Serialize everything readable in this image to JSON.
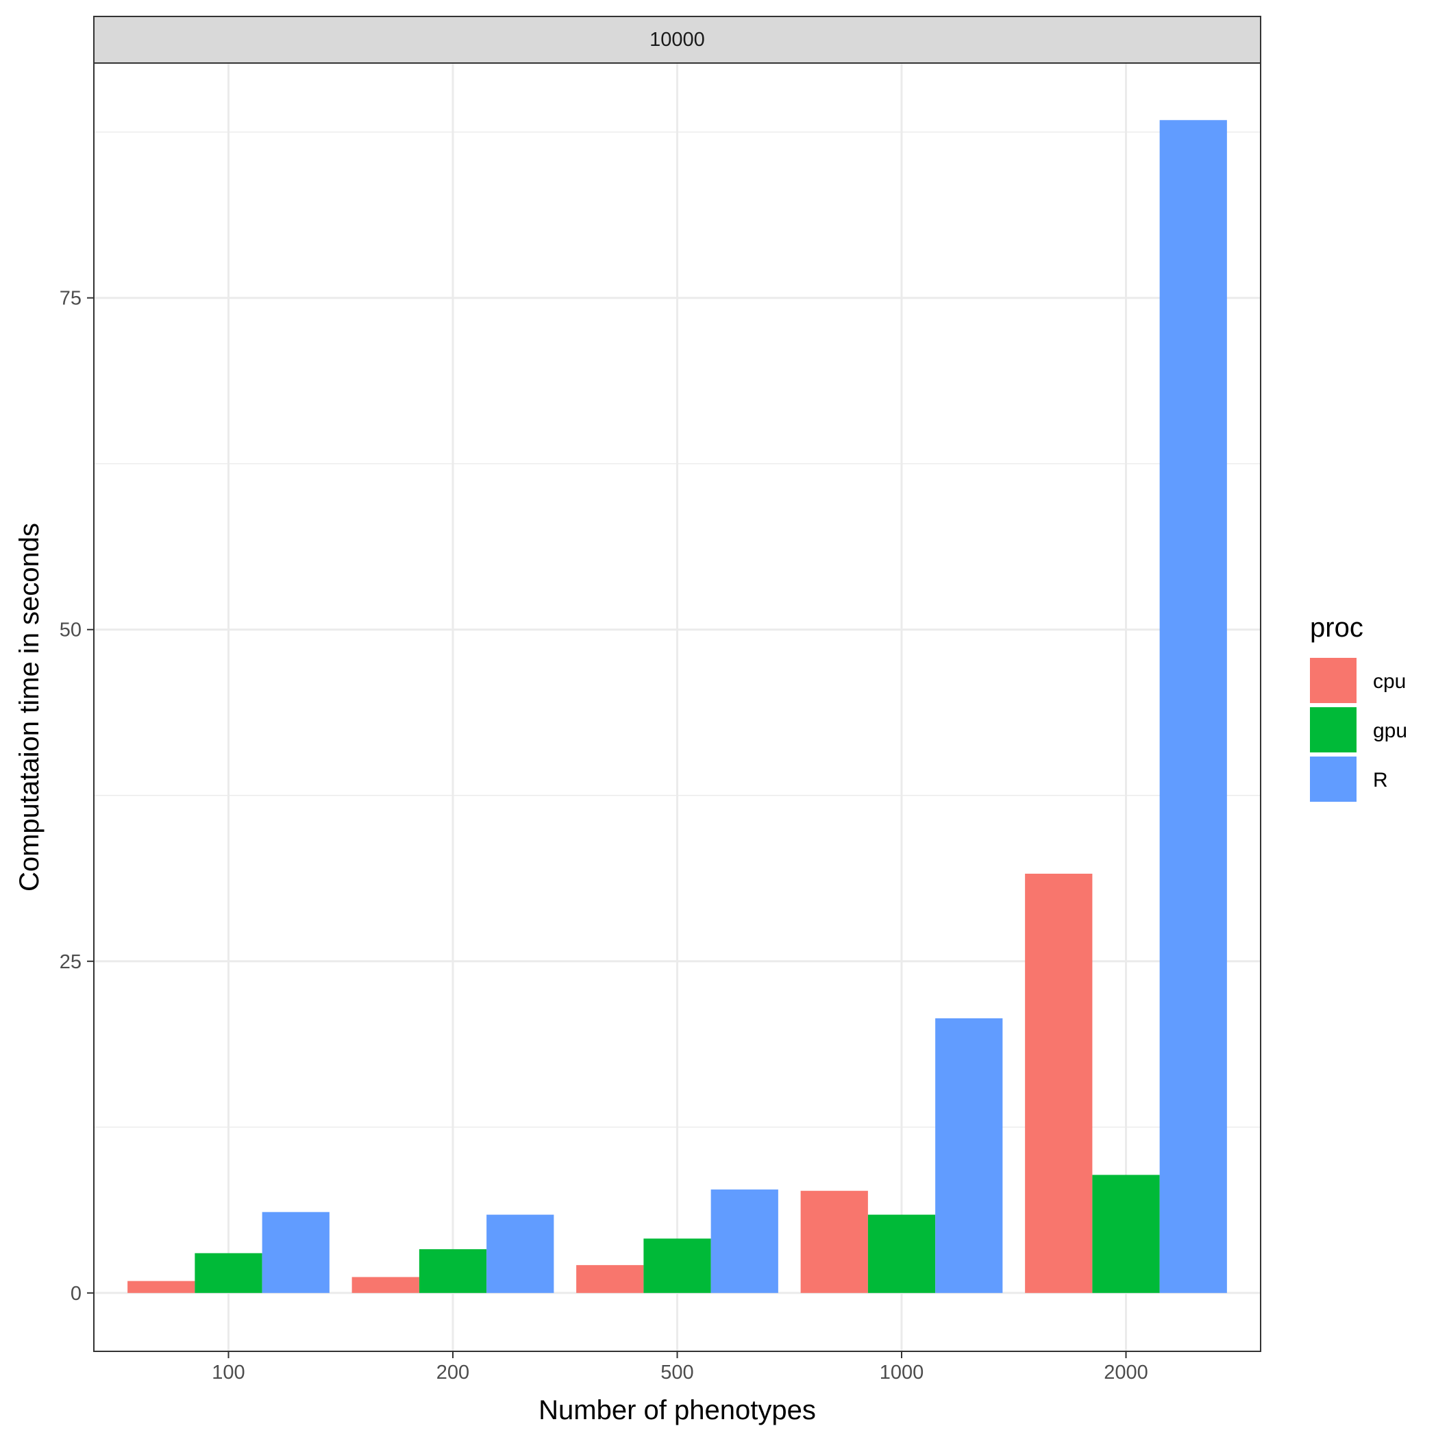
{
  "chart_data": {
    "type": "bar",
    "facet_label": "10000",
    "xlabel": "Number of phenotypes",
    "ylabel": "Computataion time in seconds",
    "categories": [
      "100",
      "200",
      "500",
      "1000",
      "2000"
    ],
    "series": [
      {
        "name": "cpu",
        "color": "#F8766D",
        "values": [
          0.9,
          1.2,
          2.1,
          7.7,
          31.6
        ]
      },
      {
        "name": "gpu",
        "color": "#00BA38",
        "values": [
          3.0,
          3.3,
          4.1,
          5.9,
          8.9
        ]
      },
      {
        "name": "R",
        "color": "#619CFF",
        "values": [
          6.1,
          5.9,
          7.8,
          20.7,
          88.4
        ]
      }
    ],
    "yticks": [
      0,
      25,
      50,
      75
    ],
    "ylim": [
      -4.4,
      92.7
    ],
    "grid": true,
    "legend": {
      "title": "proc",
      "position": "right"
    }
  }
}
